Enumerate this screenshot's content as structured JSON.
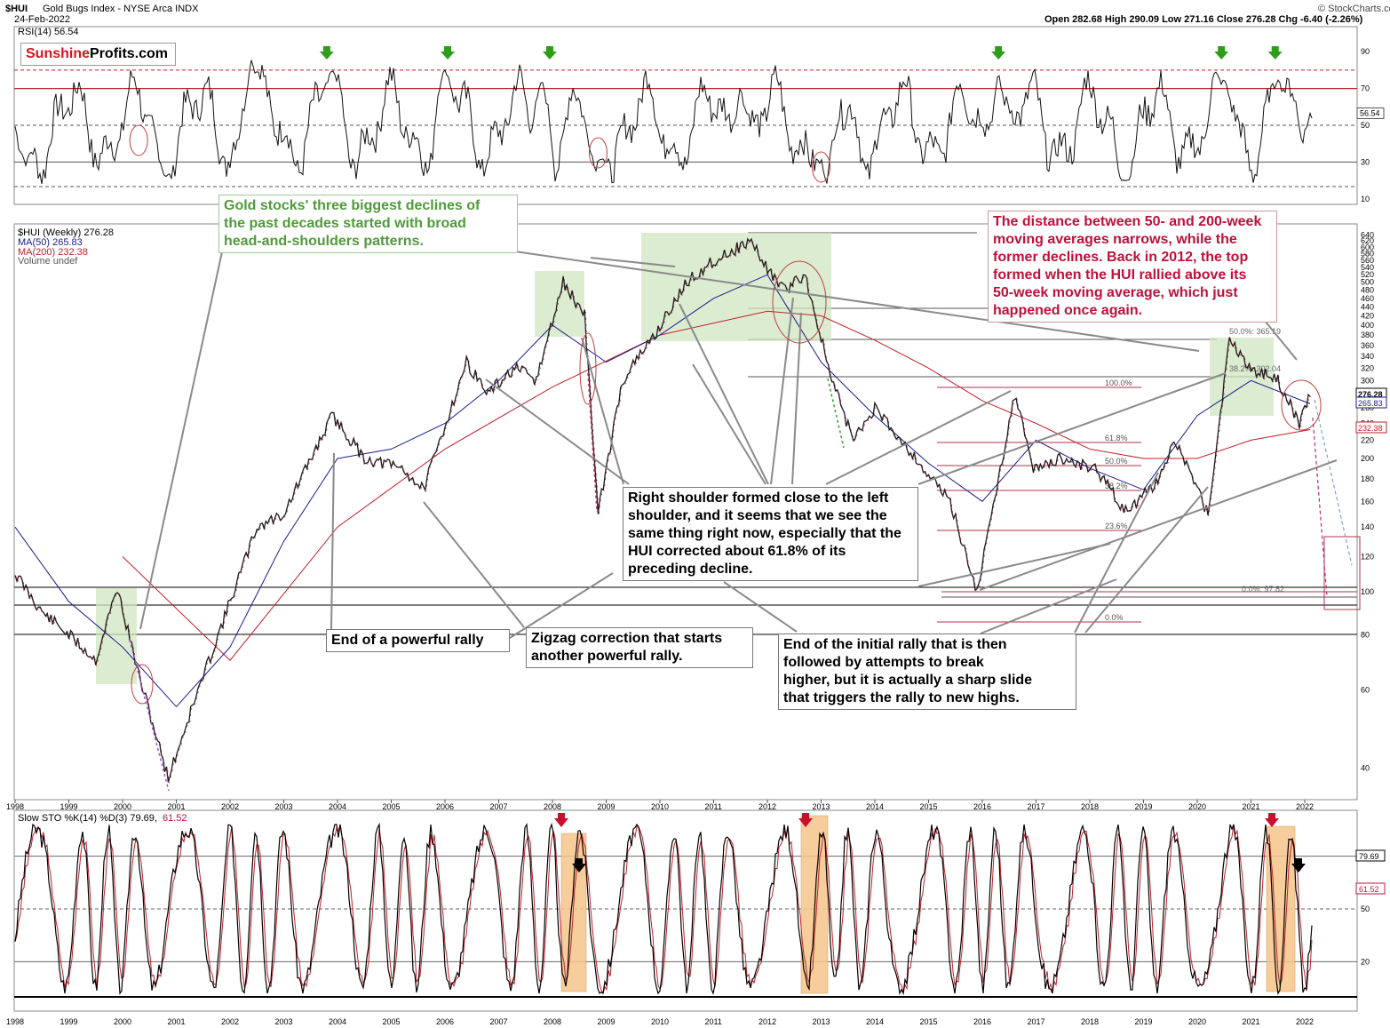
{
  "header": {
    "symbol": "$HUI",
    "name": "Gold Bugs Index - NYSE Arca INDX",
    "date": "24-Feb-2022",
    "ohlc": "Open 282.68  High 290.09  Low 271.16  Close 276.28  Chg -6.40 (-2.26%)",
    "chg_icon": "up-down-arrow-icon",
    "credit": "© StockCharts.com"
  },
  "logo": {
    "part1": "Sunshine",
    "part2": "Profits.com"
  },
  "rsi_panel": {
    "legend": "RSI(14) 56.54",
    "current": "56.54",
    "ticks": [
      90,
      70,
      50,
      30,
      10
    ],
    "levels": [
      80,
      70,
      50,
      30,
      17
    ],
    "arrow_color": "#2e9e1a"
  },
  "price_panel": {
    "legend_main": "$HUI (Weekly) 276.28",
    "legend_ma50": "MA(50) 265.83",
    "legend_ma200": "MA(200) 232.38",
    "legend_volume": "Volume undef",
    "labels": {
      "close": "276.28",
      "ma50": "265.83",
      "ma200": "232.38"
    },
    "ticks": [
      640,
      620,
      600,
      580,
      560,
      540,
      520,
      500,
      480,
      460,
      440,
      420,
      400,
      380,
      360,
      340,
      320,
      300,
      280,
      260,
      240,
      220,
      200,
      180,
      160,
      140,
      120,
      100,
      80,
      60,
      40
    ],
    "fib_labels": [
      "100.0%",
      "61.8%",
      "50.0%",
      "38.2%",
      "23.6%",
      "0.0%"
    ],
    "fib2_labels": [
      "50.0%: 365.19",
      "38.2%: 302.04",
      "0.0%: 97.82"
    ],
    "colors": {
      "price": "#000000",
      "down": "#b0103a",
      "ma50": "#1a1a8c",
      "ma200": "#c0202a",
      "hs_box": "#cfe5c0"
    }
  },
  "sto_panel": {
    "legend_prefix": "Slow STO %K(14) %D(3) 79.69,",
    "legend_suffix": "61.52",
    "k_label": "79.69",
    "d_label": "61.52",
    "ticks": [
      80,
      50,
      20
    ],
    "highlight": "#f5c58a",
    "arrow_color": "#c8102e"
  },
  "x_axis": {
    "years": [
      "1998",
      "1999",
      "2000",
      "2001",
      "2002",
      "2003",
      "2004",
      "2005",
      "2006",
      "2007",
      "2008",
      "2009",
      "2010",
      "2011",
      "2012",
      "2013",
      "2014",
      "2015",
      "2016",
      "2017",
      "2018",
      "2019",
      "2020",
      "2021",
      "2022"
    ]
  },
  "callouts": {
    "gold_stocks": [
      "Gold stocks' three biggest declines of",
      "the past decades started with broad",
      "head-and-shoulders patterns."
    ],
    "distance": [
      "The distance between 50- and 200-week",
      "moving averages narrows, while the",
      "former declines. Back in 2012, the top",
      "formed when the HUI rallied above its",
      "50-week moving average, which just",
      "happened once again."
    ],
    "right_shoulder": [
      "Right shoulder formed close to the left",
      "shoulder, and it seems that we see the",
      "same thing right now, especially that the",
      "HUI corrected about 61.8% of its",
      "preceding decline."
    ],
    "end_rally": [
      "End of a powerful rally"
    ],
    "zigzag": [
      "Zigzag correction that starts",
      "another powerful rally."
    ],
    "initial_rally": [
      "End of the initial rally that is then",
      "followed by attempts to break",
      "higher, but it is actually a sharp slide",
      "that triggers the rally to new highs."
    ]
  },
  "chart_data": [
    {
      "type": "line",
      "title": "$HUI Gold Bugs Index - NYSE Arca INDX",
      "series": [
        {
          "name": "$HUI (Weekly)",
          "x": [
            1998.0,
            1998.5,
            1999.0,
            1999.5,
            1999.9,
            2000.3,
            2000.85,
            2001.3,
            2002.0,
            2002.5,
            2003.0,
            2003.9,
            2004.5,
            2005.2,
            2005.6,
            2006.4,
            2006.8,
            2007.3,
            2007.7,
            2008.2,
            2008.6,
            2008.85,
            2009.3,
            2009.9,
            2010.5,
            2011.0,
            2011.7,
            2011.9,
            2012.3,
            2012.7,
            2013.2,
            2013.6,
            2014.0,
            2014.5,
            2014.9,
            2015.4,
            2015.9,
            2016.6,
            2016.95,
            2017.5,
            2018.1,
            2018.7,
            2019.3,
            2019.6,
            2020.2,
            2020.6,
            2021.0,
            2021.5,
            2021.9,
            2022.1
          ],
          "values": [
            110,
            90,
            80,
            70,
            102,
            65,
            38,
            55,
            95,
            140,
            150,
            250,
            200,
            190,
            170,
            330,
            280,
            320,
            300,
            500,
            420,
            150,
            300,
            380,
            500,
            560,
            620,
            560,
            480,
            520,
            300,
            220,
            260,
            220,
            190,
            160,
            100,
            280,
            190,
            200,
            190,
            150,
            180,
            220,
            150,
            370,
            320,
            300,
            240,
            276.28
          ]
        },
        {
          "name": "MA(50)",
          "x": [
            1998,
            1999,
            2000,
            2001,
            2002,
            2003,
            2004,
            2005,
            2006,
            2007,
            2008,
            2009,
            2010,
            2011,
            2012,
            2013,
            2014,
            2015,
            2016,
            2017,
            2018,
            2019,
            2020,
            2021,
            2022.1
          ],
          "values": [
            140,
            95,
            75,
            55,
            75,
            130,
            200,
            210,
            240,
            300,
            400,
            330,
            380,
            460,
            520,
            330,
            250,
            195,
            160,
            220,
            190,
            170,
            250,
            300,
            265.83
          ]
        },
        {
          "name": "MA(200)",
          "x": [
            2000,
            2002,
            2004,
            2006,
            2008,
            2010,
            2012,
            2013,
            2014,
            2015,
            2016,
            2017,
            2018,
            2019,
            2020,
            2021,
            2022.1
          ],
          "values": [
            120,
            70,
            140,
            210,
            290,
            380,
            430,
            420,
            370,
            320,
            270,
            240,
            210,
            200,
            200,
            220,
            232.38
          ]
        }
      ],
      "ylim": [
        35,
        680
      ],
      "log_scale": true,
      "xlim": [
        1998,
        2023
      ]
    },
    {
      "type": "line",
      "title": "RSI(14) 56.54",
      "series": [
        {
          "name": "RSI(14)",
          "values": [
            56.54
          ]
        }
      ],
      "ylim": [
        5,
        95
      ],
      "reference_lines": [
        80,
        70,
        50,
        30,
        17
      ]
    },
    {
      "type": "line",
      "title": "Slow STO %K(14) %D(3) 79.69, 61.52",
      "series": [
        {
          "name": "%K",
          "values": [
            79.69
          ]
        },
        {
          "name": "%D",
          "values": [
            61.52
          ]
        }
      ],
      "ylim": [
        0,
        100
      ],
      "reference_lines": [
        80,
        50,
        20
      ]
    }
  ]
}
